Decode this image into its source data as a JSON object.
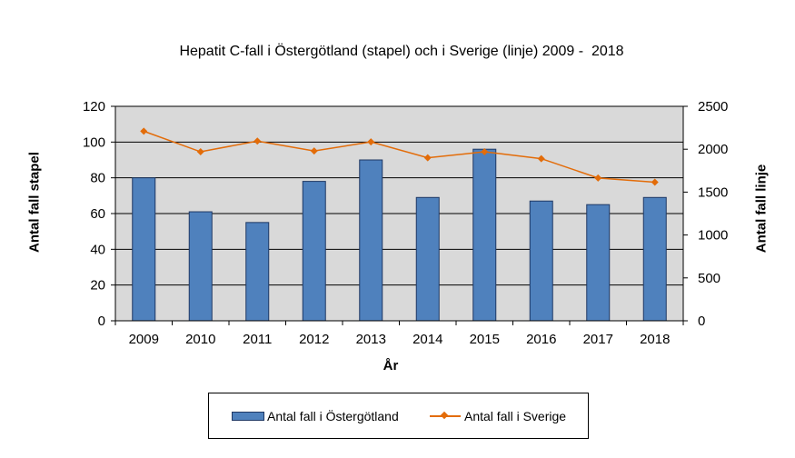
{
  "chart_data": {
    "type": "bar",
    "title": "Hepatit C-fall i Östergötland (stapel) och i Sverige (linje) 2009 -  2018",
    "xlabel": "År",
    "ylabel": "Antal fall stapel",
    "ylabel_right": "Antal fall linje",
    "categories": [
      "2009",
      "2010",
      "2011",
      "2012",
      "2013",
      "2014",
      "2015",
      "2016",
      "2017",
      "2018"
    ],
    "ylim": [
      0,
      120
    ],
    "y_ticks": [
      "0",
      "20",
      "40",
      "60",
      "80",
      "100",
      "120"
    ],
    "ylim_right": [
      0,
      2500
    ],
    "y_ticks_right": [
      "0",
      "500",
      "1000",
      "1500",
      "2000",
      "2500"
    ],
    "grid": true,
    "legend_position": "bottom",
    "series": [
      {
        "name": "Antal fall i Östergötland",
        "type": "bar",
        "axis": "left",
        "color": "#4f81bd",
        "values": [
          80,
          61,
          55,
          78,
          90,
          69,
          96,
          67,
          65,
          69
        ]
      },
      {
        "name": "Antal fall i Sverige",
        "type": "line",
        "axis": "right",
        "color": "#e36c09",
        "values": [
          2210,
          1970,
          2095,
          1980,
          2085,
          1900,
          1970,
          1890,
          1665,
          1615
        ]
      }
    ]
  }
}
